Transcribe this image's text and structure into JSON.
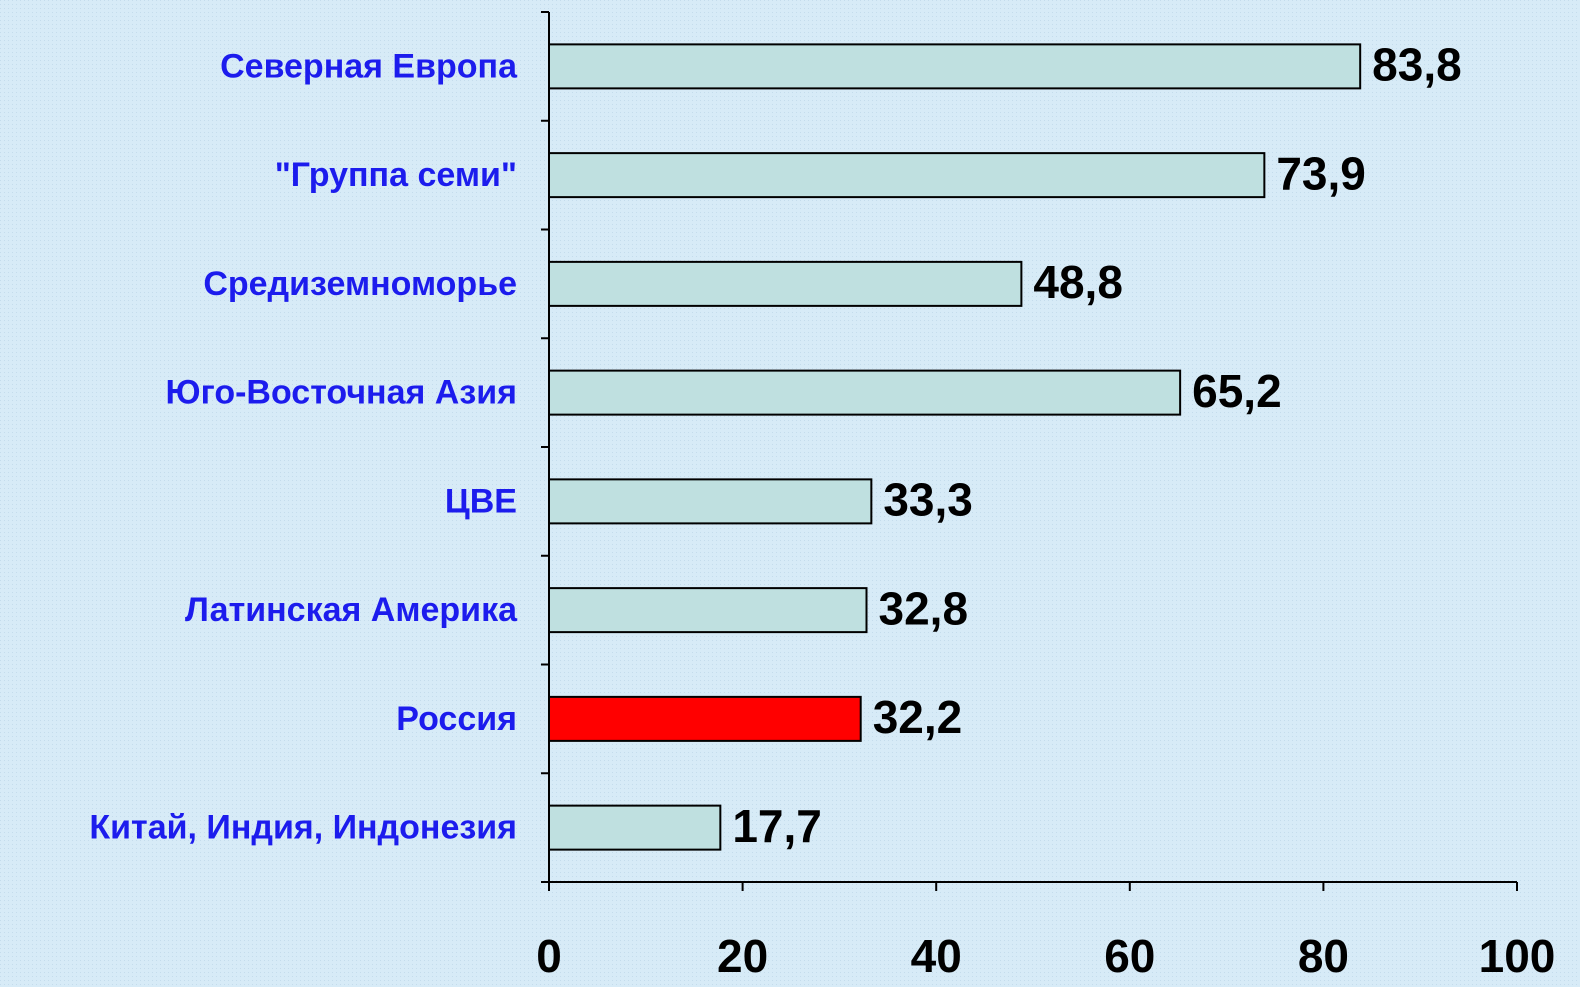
{
  "chart_data": {
    "type": "hbar",
    "categories": [
      "Северная Европа",
      "\"Группа семи\"",
      "Средиземноморье",
      "Юго-Восточная Азия",
      "ЦВЕ",
      "Латинская Америка",
      "Россия",
      "Китай, Индия, Индонезия"
    ],
    "values": [
      83.8,
      73.9,
      48.8,
      65.2,
      33.3,
      32.8,
      32.2,
      17.7
    ],
    "value_labels": [
      "83,8",
      "73,9",
      "48,8",
      "65,2",
      "33,3",
      "32,8",
      "32,2",
      "17,7"
    ],
    "colors": [
      "#bfe0e0",
      "#bfe0e0",
      "#bfe0e0",
      "#bfe0e0",
      "#bfe0e0",
      "#bfe0e0",
      "#ff0000",
      "#bfe0e0"
    ],
    "xlim": [
      0,
      100
    ],
    "xticks": [
      0,
      20,
      40,
      60,
      80,
      100
    ]
  }
}
